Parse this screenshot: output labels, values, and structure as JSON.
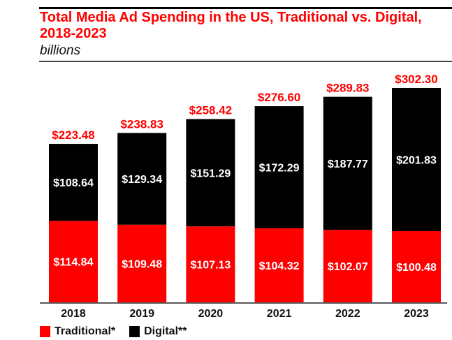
{
  "chart_data": {
    "type": "bar",
    "stacked": true,
    "title": "Total Media Ad Spending in the US, Traditional vs. Digital, 2018-2023",
    "subtitle": "billions",
    "categories": [
      "2018",
      "2019",
      "2020",
      "2021",
      "2022",
      "2023"
    ],
    "series": [
      {
        "name": "Traditional*",
        "color": "#ff0000",
        "values": [
          114.84,
          109.48,
          107.13,
          104.32,
          102.07,
          100.48
        ],
        "labels": [
          "$114.84",
          "$109.48",
          "$107.13",
          "$104.32",
          "$102.07",
          "$100.48"
        ]
      },
      {
        "name": "Digital**",
        "color": "#000000",
        "values": [
          108.64,
          129.34,
          151.29,
          172.29,
          187.77,
          201.83
        ],
        "labels": [
          "$108.64",
          "$129.34",
          "$151.29",
          "$172.29",
          "$187.77",
          "$201.83"
        ]
      }
    ],
    "totals": [
      223.48,
      238.83,
      258.42,
      276.6,
      289.83,
      302.3
    ],
    "total_labels": [
      "$223.48",
      "$238.83",
      "$258.42",
      "$276.60",
      "$289.83",
      "$302.30"
    ],
    "total_label_color": "#ff0000",
    "ylim": [
      0,
      302.3
    ],
    "grid": false,
    "legend": "bottom-left"
  }
}
